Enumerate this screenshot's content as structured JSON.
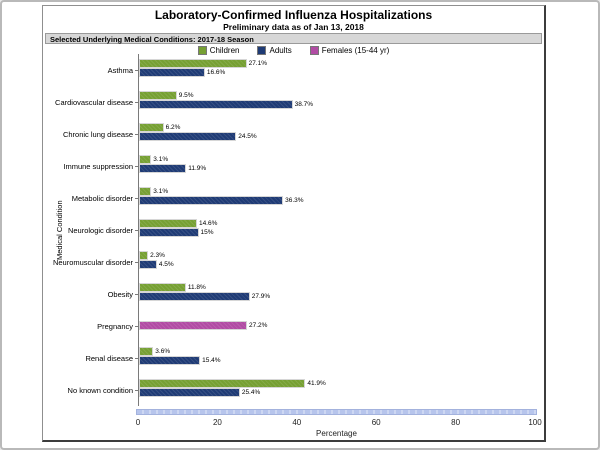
{
  "chart": {
    "title": "Laboratory-Confirmed Influenza Hospitalizations",
    "subtitle": "Preliminary data as of Jan 13, 2018",
    "panel_header": "Selected Underlying Medical Conditions: 2017-18 Season"
  },
  "chart_data": {
    "type": "bar",
    "orientation": "horizontal",
    "title": "Laboratory-Confirmed Influenza Hospitalizations",
    "subtitle": "Preliminary data as of Jan 13, 2018",
    "categories": [
      "Asthma",
      "Cardiovascular disease",
      "Chronic lung disease",
      "Immune suppression",
      "Metabolic disorder",
      "Neurologic disorder",
      "Neuromuscular disorder",
      "Obesity",
      "Pregnancy",
      "Renal disease",
      "No known condition"
    ],
    "series": [
      {
        "name": "Children",
        "color": "#76A033",
        "values": [
          27.1,
          9.5,
          6.2,
          3.1,
          3.1,
          14.6,
          2.3,
          11.8,
          null,
          3.6,
          41.9
        ]
      },
      {
        "name": "Adults",
        "color": "#1F3B75",
        "values": [
          16.6,
          38.7,
          24.5,
          11.9,
          36.3,
          15,
          4.5,
          27.9,
          null,
          15.4,
          25.4
        ]
      },
      {
        "name": "Females (15-44 yr)",
        "color": "#B14CA4",
        "values": [
          null,
          null,
          null,
          null,
          null,
          null,
          null,
          null,
          27.2,
          null,
          null
        ]
      }
    ],
    "xlabel": "Percentage",
    "ylabel": "Medical Condition",
    "xlim": [
      0,
      100
    ],
    "xticks": [
      0,
      20,
      40,
      60,
      80,
      100
    ],
    "legend_position": "top",
    "value_label_suffix": "%"
  },
  "colors": {
    "children": "#76A033",
    "adults": "#1F3B75",
    "females": "#B14CA4",
    "bottom_band": "#B7C5EC",
    "panel_header_bg": "#D7D7D7"
  }
}
